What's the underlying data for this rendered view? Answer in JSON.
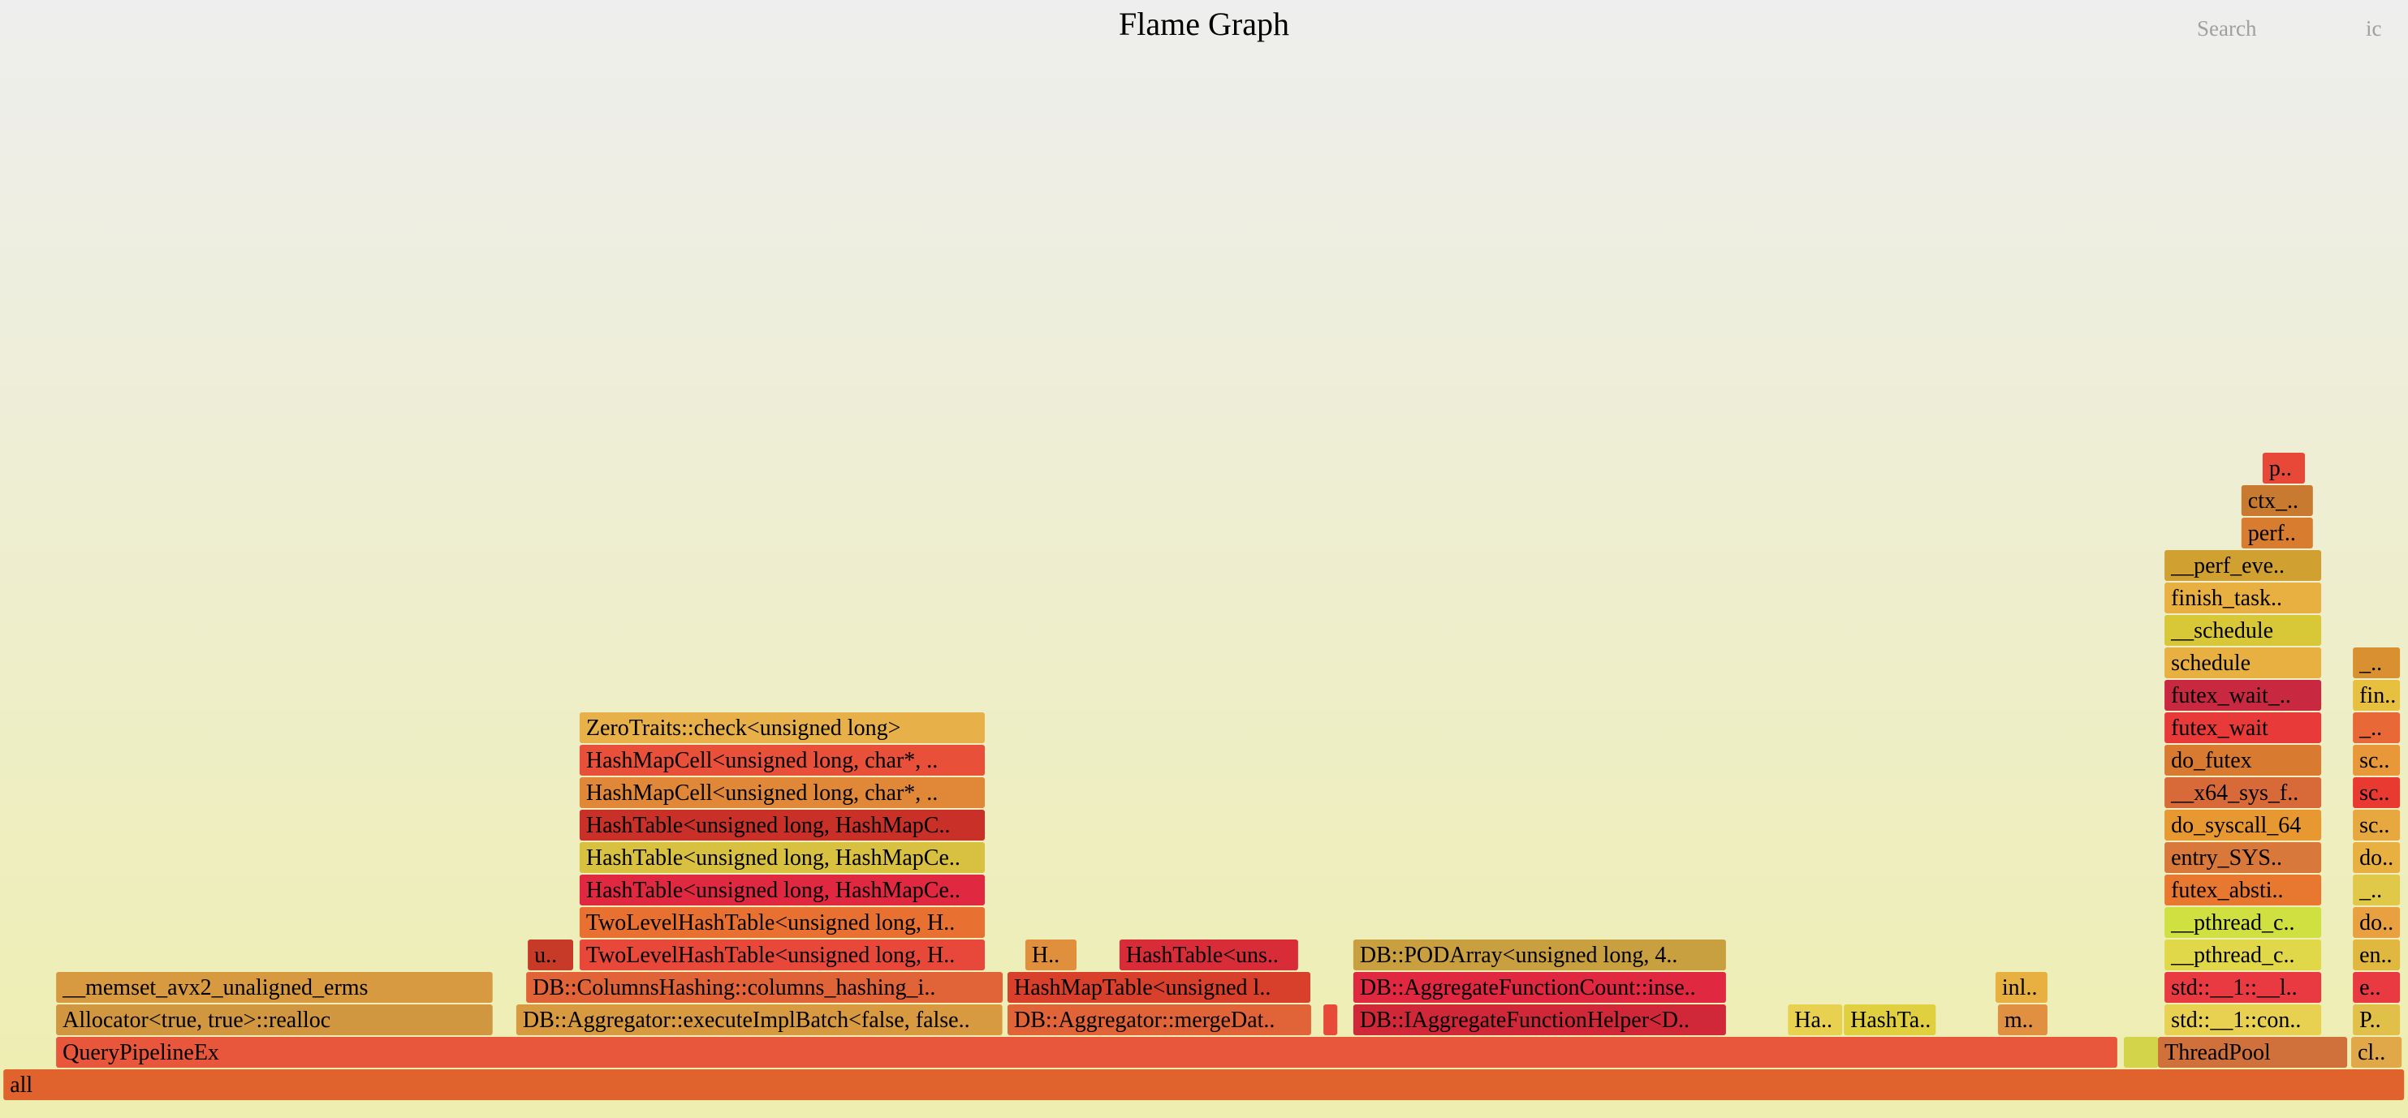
{
  "header": {
    "title": "Flame Graph",
    "search_label": "Search",
    "ic_label": "ic"
  },
  "chart_data": {
    "type": "flame",
    "title": "Flame Graph",
    "units": "fraction of total samples (0-1), depth 0 = bottom row",
    "frames": [
      {
        "name": "all",
        "start": 0.0014,
        "width": 0.9973,
        "depth": 0,
        "color": "#e0622d"
      },
      {
        "name": "QueryPipelineEx",
        "start": 0.0233,
        "width": 0.8563,
        "depth": 1,
        "color": "#e8563c"
      },
      {
        "name": "",
        "start": 0.882,
        "width": 0.0148,
        "depth": 1,
        "color": "#d4d44a"
      },
      {
        "name": "ThreadPool",
        "start": 0.8962,
        "width": 0.0789,
        "depth": 1,
        "color": "#d0703a"
      },
      {
        "name": "cl..",
        "start": 0.9764,
        "width": 0.0213,
        "depth": 1,
        "color": "#e0a848"
      },
      {
        "name": "Allocator<true, true>::realloc",
        "start": 0.0233,
        "width": 0.1816,
        "depth": 2,
        "color": "#d09640"
      },
      {
        "name": "DB::Aggregator::executeImplBatch<false, false..",
        "start": 0.2144,
        "width": 0.2022,
        "depth": 2,
        "color": "#d89a40"
      },
      {
        "name": "DB::Aggregator::mergeDat..",
        "start": 0.4184,
        "width": 0.1264,
        "depth": 2,
        "color": "#e06438"
      },
      {
        "name": "",
        "start": 0.5496,
        "width": 0.0061,
        "depth": 2,
        "color": "#e84a3a"
      },
      {
        "name": "DB::IAggregateFunctionHelper<D..",
        "start": 0.562,
        "width": 0.1551,
        "depth": 2,
        "color": "#d02838"
      },
      {
        "name": "Ha..",
        "start": 0.7425,
        "width": 0.0229,
        "depth": 2,
        "color": "#e8d050"
      },
      {
        "name": "HashTa..",
        "start": 0.7657,
        "width": 0.0385,
        "depth": 2,
        "color": "#e0d040"
      },
      {
        "name": "m..",
        "start": 0.8297,
        "width": 0.0209,
        "depth": 2,
        "color": "#e09040"
      },
      {
        "name": "std::__1::con..",
        "start": 0.8989,
        "width": 0.0654,
        "depth": 2,
        "color": "#e8d050"
      },
      {
        "name": "P..",
        "start": 0.9771,
        "width": 0.0199,
        "depth": 2,
        "color": "#e0c048"
      },
      {
        "name": "__memset_avx2_unaligned_erms",
        "start": 0.0233,
        "width": 0.1816,
        "depth": 3,
        "color": "#d89a40"
      },
      {
        "name": "DB::ColumnsHashing::columns_hashing_i..",
        "start": 0.2185,
        "width": 0.1982,
        "depth": 3,
        "color": "#e06438"
      },
      {
        "name": "HashMapTable<unsigned l..",
        "start": 0.4184,
        "width": 0.1261,
        "depth": 3,
        "color": "#d8402c"
      },
      {
        "name": "DB::AggregateFunctionCount::inse..",
        "start": 0.562,
        "width": 0.1551,
        "depth": 3,
        "color": "#e02840"
      },
      {
        "name": "inl..",
        "start": 0.8287,
        "width": 0.0219,
        "depth": 3,
        "color": "#e8b040"
      },
      {
        "name": "std::__1::__l..",
        "start": 0.8989,
        "width": 0.0654,
        "depth": 3,
        "color": "#e83a40"
      },
      {
        "name": "e..",
        "start": 0.9771,
        "width": 0.0199,
        "depth": 3,
        "color": "#e83a40"
      },
      {
        "name": "u..",
        "start": 0.2192,
        "width": 0.0192,
        "depth": 4,
        "color": "#c83a28"
      },
      {
        "name": "TwoLevelHashTable<unsigned long, H..",
        "start": 0.2407,
        "width": 0.1686,
        "depth": 4,
        "color": "#e8483a"
      },
      {
        "name": "H..",
        "start": 0.4258,
        "width": 0.0216,
        "depth": 4,
        "color": "#e0903c"
      },
      {
        "name": "HashTable<uns..",
        "start": 0.4649,
        "width": 0.0745,
        "depth": 4,
        "color": "#d82c38"
      },
      {
        "name": "DB::PODArray<unsigned long, 4..",
        "start": 0.562,
        "width": 0.1551,
        "depth": 4,
        "color": "#c8a040"
      },
      {
        "name": "__pthread_c..",
        "start": 0.8989,
        "width": 0.0654,
        "depth": 4,
        "color": "#e0d848"
      },
      {
        "name": "en..",
        "start": 0.9771,
        "width": 0.0199,
        "depth": 4,
        "color": "#e0b840"
      },
      {
        "name": "TwoLevelHashTable<unsigned long, H..",
        "start": 0.2407,
        "width": 0.1686,
        "depth": 5,
        "color": "#e87030"
      },
      {
        "name": "__pthread_c..",
        "start": 0.8989,
        "width": 0.0654,
        "depth": 5,
        "color": "#d0e040"
      },
      {
        "name": "do..",
        "start": 0.9771,
        "width": 0.0199,
        "depth": 5,
        "color": "#e8a040"
      },
      {
        "name": "HashTable<unsigned long, HashMapCe..",
        "start": 0.2407,
        "width": 0.1686,
        "depth": 6,
        "color": "#e02840"
      },
      {
        "name": "futex_absti..",
        "start": 0.8989,
        "width": 0.0654,
        "depth": 6,
        "color": "#e87830"
      },
      {
        "name": "_..",
        "start": 0.9771,
        "width": 0.0199,
        "depth": 6,
        "color": "#e0c848"
      },
      {
        "name": "HashTable<unsigned long, HashMapCe..",
        "start": 0.2407,
        "width": 0.1686,
        "depth": 7,
        "color": "#d8c040"
      },
      {
        "name": "entry_SYS..",
        "start": 0.8989,
        "width": 0.0654,
        "depth": 7,
        "color": "#d8783a"
      },
      {
        "name": "do..",
        "start": 0.9771,
        "width": 0.0199,
        "depth": 7,
        "color": "#e8b040"
      },
      {
        "name": "HashTable<unsigned long, HashMapC..",
        "start": 0.2407,
        "width": 0.1686,
        "depth": 8,
        "color": "#c83028"
      },
      {
        "name": "do_syscall_64",
        "start": 0.8989,
        "width": 0.0654,
        "depth": 8,
        "color": "#e89830"
      },
      {
        "name": "sc..",
        "start": 0.9771,
        "width": 0.0199,
        "depth": 8,
        "color": "#e8a840"
      },
      {
        "name": "HashMapCell<unsigned long, char*, ..",
        "start": 0.2407,
        "width": 0.1686,
        "depth": 9,
        "color": "#e08838"
      },
      {
        "name": "__x64_sys_f..",
        "start": 0.8989,
        "width": 0.0654,
        "depth": 9,
        "color": "#d86a3a"
      },
      {
        "name": "sc..",
        "start": 0.9771,
        "width": 0.0199,
        "depth": 9,
        "color": "#e83a30"
      },
      {
        "name": "HashMapCell<unsigned long, char*, ..",
        "start": 0.2407,
        "width": 0.1686,
        "depth": 10,
        "color": "#e8503a"
      },
      {
        "name": "do_futex",
        "start": 0.8989,
        "width": 0.0654,
        "depth": 10,
        "color": "#d87a30"
      },
      {
        "name": "sc..",
        "start": 0.9771,
        "width": 0.0199,
        "depth": 10,
        "color": "#e89838"
      },
      {
        "name": "ZeroTraits::check<unsigned long>",
        "start": 0.2407,
        "width": 0.1686,
        "depth": 11,
        "color": "#e8b048"
      },
      {
        "name": "futex_wait",
        "start": 0.8989,
        "width": 0.0654,
        "depth": 11,
        "color": "#e83a38"
      },
      {
        "name": "_..",
        "start": 0.9771,
        "width": 0.0199,
        "depth": 11,
        "color": "#e86838"
      },
      {
        "name": "futex_wait_..",
        "start": 0.8989,
        "width": 0.0654,
        "depth": 12,
        "color": "#c82840"
      },
      {
        "name": "fin..",
        "start": 0.9771,
        "width": 0.0199,
        "depth": 12,
        "color": "#e8c040"
      },
      {
        "name": "schedule",
        "start": 0.8989,
        "width": 0.0654,
        "depth": 13,
        "color": "#e8b040"
      },
      {
        "name": "_..",
        "start": 0.9771,
        "width": 0.0199,
        "depth": 13,
        "color": "#d89030"
      },
      {
        "name": "__schedule",
        "start": 0.8989,
        "width": 0.0654,
        "depth": 14,
        "color": "#d8c838"
      },
      {
        "name": "finish_task..",
        "start": 0.8989,
        "width": 0.0654,
        "depth": 15,
        "color": "#e8b040"
      },
      {
        "name": "__perf_eve..",
        "start": 0.8989,
        "width": 0.0654,
        "depth": 16,
        "color": "#d0a030"
      },
      {
        "name": "perf..",
        "start": 0.9308,
        "width": 0.03,
        "depth": 17,
        "color": "#d87c30"
      },
      {
        "name": "ctx_..",
        "start": 0.9308,
        "width": 0.03,
        "depth": 18,
        "color": "#c87a30"
      },
      {
        "name": "p..",
        "start": 0.9396,
        "width": 0.0179,
        "depth": 19,
        "color": "#e84838"
      }
    ]
  }
}
